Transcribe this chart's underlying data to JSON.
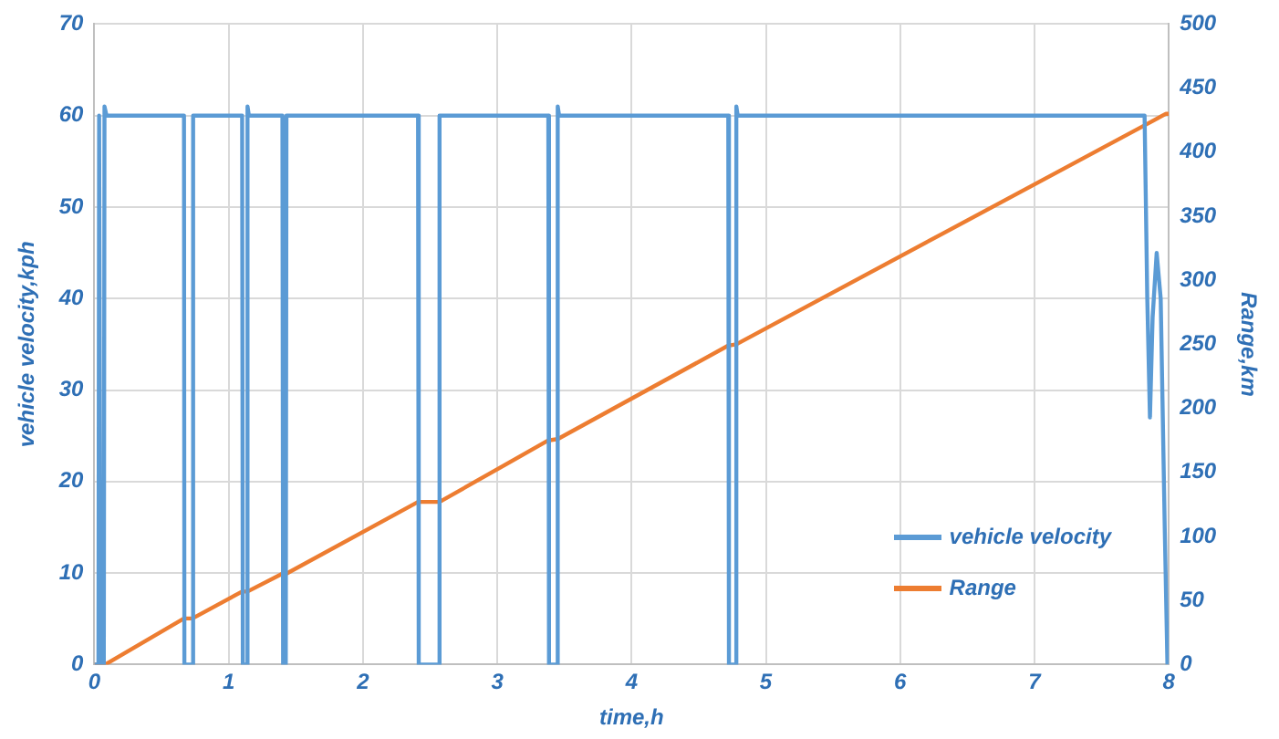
{
  "chart_data": {
    "type": "line",
    "xlabel": "time,h",
    "ylabel": "vehicle velocity,kph",
    "y2label": "Range,km",
    "xlim": [
      0,
      8
    ],
    "xticks": [
      0,
      1,
      2,
      3,
      4,
      5,
      6,
      7,
      8
    ],
    "ylim": [
      0,
      70
    ],
    "yticks": [
      0,
      10,
      20,
      30,
      40,
      50,
      60,
      70
    ],
    "y2lim": [
      0,
      500
    ],
    "y2ticks": [
      0,
      50,
      100,
      150,
      200,
      250,
      300,
      350,
      400,
      450,
      500
    ],
    "grid": true,
    "legend": "bottom right",
    "marker": "none",
    "line_style": "solid",
    "series": [
      {
        "name": "vehicle velocity",
        "color": "#5b9bd5",
        "x": [
          0,
          0.03,
          0.035,
          0.04,
          0.045,
          0.07,
          0.075,
          0.09,
          0.667,
          0.67,
          0.73,
          0.735,
          1.1,
          1.105,
          1.135,
          1.14,
          1.15,
          1.4,
          1.405,
          1.425,
          1.43,
          2.41,
          2.415,
          2.565,
          2.57,
          3.38,
          3.385,
          3.445,
          3.45,
          3.46,
          4.72,
          4.725,
          4.775,
          4.78,
          4.79,
          7.82,
          7.84,
          7.86,
          7.88,
          7.91,
          7.94,
          7.97,
          7.99
        ],
        "values": [
          0,
          0,
          60,
          60,
          0,
          0,
          61,
          60,
          60,
          0,
          0,
          60,
          60,
          0,
          0,
          61,
          60,
          60,
          0,
          0,
          60,
          60,
          0,
          0,
          60,
          60,
          0,
          0,
          61,
          60,
          60,
          0,
          0,
          61,
          60,
          60,
          40,
          27,
          38,
          45,
          40,
          15,
          0
        ]
      },
      {
        "name": "Range",
        "color": "#ed7d31",
        "axis": "y2",
        "x": [
          0,
          0.08,
          0.667,
          0.73,
          1.1,
          1.14,
          1.4,
          1.43,
          2.41,
          2.57,
          3.38,
          3.45,
          4.72,
          4.78,
          7.82,
          7.98,
          8
        ],
        "values": [
          0,
          0,
          36,
          36,
          57,
          57,
          71,
          71,
          127,
          127,
          175,
          176,
          249,
          250,
          421,
          430,
          430
        ]
      }
    ]
  }
}
